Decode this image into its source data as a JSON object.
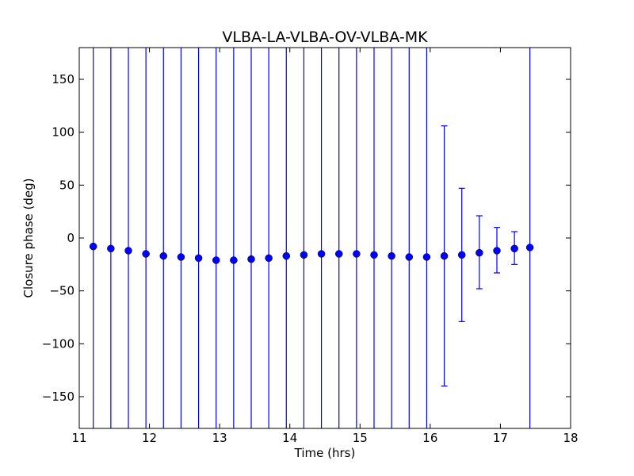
{
  "chart_data": {
    "type": "scatter",
    "title": "VLBA-LA-VLBA-OV-VLBA-MK",
    "xlabel": "Time (hrs)",
    "ylabel": "Closure phase (deg)",
    "xlim": [
      11,
      18
    ],
    "ylim": [
      -180,
      180
    ],
    "xticks": [
      11,
      12,
      13,
      14,
      15,
      16,
      17,
      18
    ],
    "yticks": [
      -150,
      -100,
      -50,
      0,
      50,
      100,
      150
    ],
    "xtick_labels": [
      "11",
      "12",
      "13",
      "14",
      "15",
      "16",
      "17",
      "18"
    ],
    "ytick_labels": [
      "−150",
      "−100",
      "−50",
      "0",
      "50",
      "100",
      "150"
    ],
    "grid": false,
    "marker_color": "#0000ff",
    "errorbar_color": "#0000ff",
    "series": [
      {
        "x": [
          11.2,
          11.45,
          11.7,
          11.95,
          12.2,
          12.45,
          12.7,
          12.95,
          13.2,
          13.45,
          13.7,
          13.95,
          14.2,
          14.45,
          14.7,
          14.95,
          15.2,
          15.45,
          15.7,
          15.95,
          16.2,
          16.45,
          16.7,
          16.95,
          17.2,
          17.42
        ],
        "y": [
          -8,
          -10,
          -12,
          -15,
          -17,
          -18,
          -19,
          -21,
          -21,
          -20,
          -19,
          -17,
          -16,
          -15,
          -15,
          -15,
          -16,
          -17,
          -18,
          -18,
          -17,
          -16,
          -14,
          -12,
          -10,
          -9
        ],
        "yerr_lower": [
          500,
          500,
          500,
          500,
          500,
          500,
          500,
          500,
          500,
          500,
          500,
          500,
          500,
          500,
          500,
          500,
          500,
          500,
          500,
          500,
          123,
          63,
          34,
          21,
          15,
          500
        ],
        "yerr_upper": [
          500,
          500,
          500,
          500,
          500,
          500,
          500,
          500,
          500,
          500,
          500,
          500,
          500,
          500,
          500,
          500,
          500,
          500,
          500,
          500,
          123,
          63,
          35,
          22,
          16,
          500
        ]
      }
    ]
  }
}
